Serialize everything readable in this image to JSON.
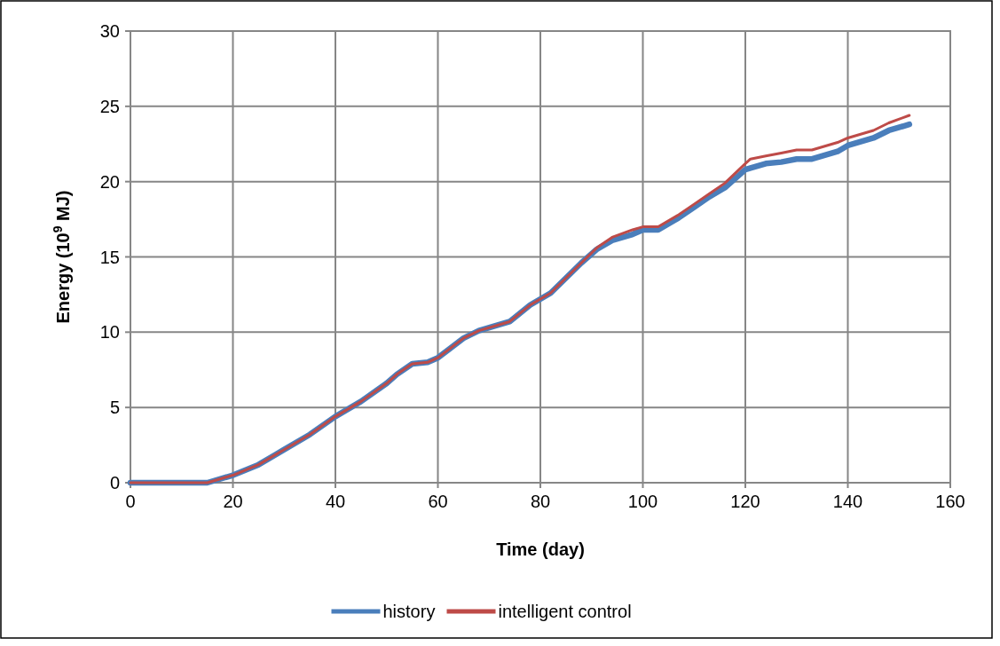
{
  "chart_data": {
    "type": "line",
    "xlabel": "Time (day)",
    "ylabel": "Energy (10$^{9}$ MJ)",
    "x": [
      0,
      15,
      20,
      25,
      30,
      35,
      40,
      45,
      50,
      52,
      55,
      58,
      60,
      65,
      68,
      74,
      78,
      82,
      85,
      88,
      91,
      94,
      98,
      100,
      103,
      107,
      110,
      113,
      116,
      120,
      121,
      124,
      127,
      130,
      133,
      138,
      140,
      145,
      148,
      152
    ],
    "series": [
      {
        "name": "history",
        "color": "#4a7ebb",
        "values": [
          0,
          0,
          0.5,
          1.2,
          2.2,
          3.2,
          4.4,
          5.4,
          6.6,
          7.2,
          7.9,
          8.0,
          8.3,
          9.6,
          10.1,
          10.7,
          11.8,
          12.6,
          13.6,
          14.6,
          15.5,
          16.1,
          16.5,
          16.8,
          16.8,
          17.6,
          18.3,
          19.0,
          19.6,
          20.8,
          20.9,
          21.2,
          21.3,
          21.5,
          21.5,
          22.0,
          22.4,
          22.9,
          23.4,
          23.8
        ]
      },
      {
        "name": "intelligent control",
        "color": "#be4b48",
        "values": [
          0,
          0,
          0.5,
          1.2,
          2.2,
          3.2,
          4.4,
          5.4,
          6.6,
          7.2,
          7.9,
          8.0,
          8.3,
          9.6,
          10.1,
          10.7,
          11.8,
          12.6,
          13.6,
          14.6,
          15.6,
          16.3,
          16.8,
          17.0,
          17.0,
          17.8,
          18.5,
          19.2,
          19.9,
          21.2,
          21.5,
          21.7,
          21.9,
          22.1,
          22.1,
          22.6,
          22.9,
          23.4,
          23.9,
          24.4
        ]
      }
    ],
    "xlim": [
      0,
      160
    ],
    "xticks": [
      0,
      20,
      40,
      60,
      80,
      100,
      120,
      140,
      160
    ],
    "ylim": [
      0,
      30
    ],
    "yticks": [
      0,
      5,
      10,
      15,
      20,
      25,
      30
    ],
    "grid": true,
    "legend": "bottom",
    "line_style": "solid",
    "marker": "none"
  }
}
